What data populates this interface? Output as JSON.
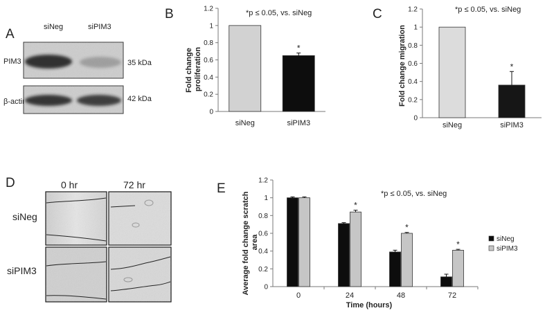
{
  "colors": {
    "siNeg_light": "#d2d2d2",
    "siNeg_dark": "#0d0d0d",
    "siPIM3_dark": "#161616",
    "siPIM3_light": "#c6c6c6",
    "axis": "#777777"
  },
  "panel_a": {
    "label": "A",
    "lanes": [
      "siNeg",
      "siPIM3"
    ],
    "rows": [
      {
        "name": "PIM3",
        "size": "35 kDa",
        "intensity": [
          0.88,
          0.25
        ]
      },
      {
        "name": "β-actin",
        "size": "42 kDa",
        "intensity": [
          0.85,
          0.8
        ]
      }
    ]
  },
  "panel_d": {
    "label": "D",
    "columns": [
      "0 hr",
      "72 hr"
    ],
    "rows": [
      "siNeg",
      "siPIM3"
    ]
  },
  "chart_data": [
    {
      "panel": "B",
      "type": "bar",
      "title": "*p ≤ 0.05, vs. siNeg",
      "xlabel": "",
      "ylabel": "Fold change\nproliferation",
      "categories": [
        "siNeg",
        "siPIM3"
      ],
      "values": [
        1.0,
        0.65
      ],
      "errors": [
        0,
        0.03
      ],
      "significance": [
        "",
        "*"
      ],
      "ylim": [
        0,
        1.2
      ],
      "yticks": [
        "0",
        "0.2",
        "0.4",
        "0.6",
        "0.8",
        "1",
        "1.2"
      ]
    },
    {
      "panel": "C",
      "type": "bar",
      "title": "*p ≤ 0.05, vs. siNeg",
      "xlabel": "",
      "ylabel": "Fold change migration",
      "categories": [
        "siNeg",
        "siPIM3"
      ],
      "values": [
        1.0,
        0.36
      ],
      "errors": [
        0,
        0.15
      ],
      "significance": [
        "",
        "*"
      ],
      "ylim": [
        0,
        1.2
      ],
      "yticks": [
        "0",
        "0.2",
        "0.4",
        "0.6",
        "0.8",
        "1",
        "1.2"
      ]
    },
    {
      "panel": "E",
      "type": "bar",
      "title": "*p ≤ 0.05, vs. siNeg",
      "xlabel": "Time (hours)",
      "ylabel": "Average fold change scratch\narea",
      "categories": [
        "0",
        "24",
        "48",
        "72"
      ],
      "series": [
        {
          "name": "siNeg",
          "values": [
            1.0,
            0.71,
            0.39,
            0.11
          ],
          "errors": [
            0.01,
            0.01,
            0.02,
            0.03
          ],
          "significance": [
            "",
            "",
            "",
            ""
          ]
        },
        {
          "name": "siPIM3",
          "values": [
            1.0,
            0.84,
            0.6,
            0.41
          ],
          "errors": [
            0.01,
            0.02,
            0.01,
            0.01
          ],
          "significance": [
            "",
            "*",
            "*",
            "*"
          ]
        }
      ],
      "ylim": [
        0,
        1.2
      ],
      "yticks": [
        "0",
        "0.2",
        "0.4",
        "0.6",
        "0.8",
        "1",
        "1.2"
      ],
      "legend": "right"
    }
  ]
}
